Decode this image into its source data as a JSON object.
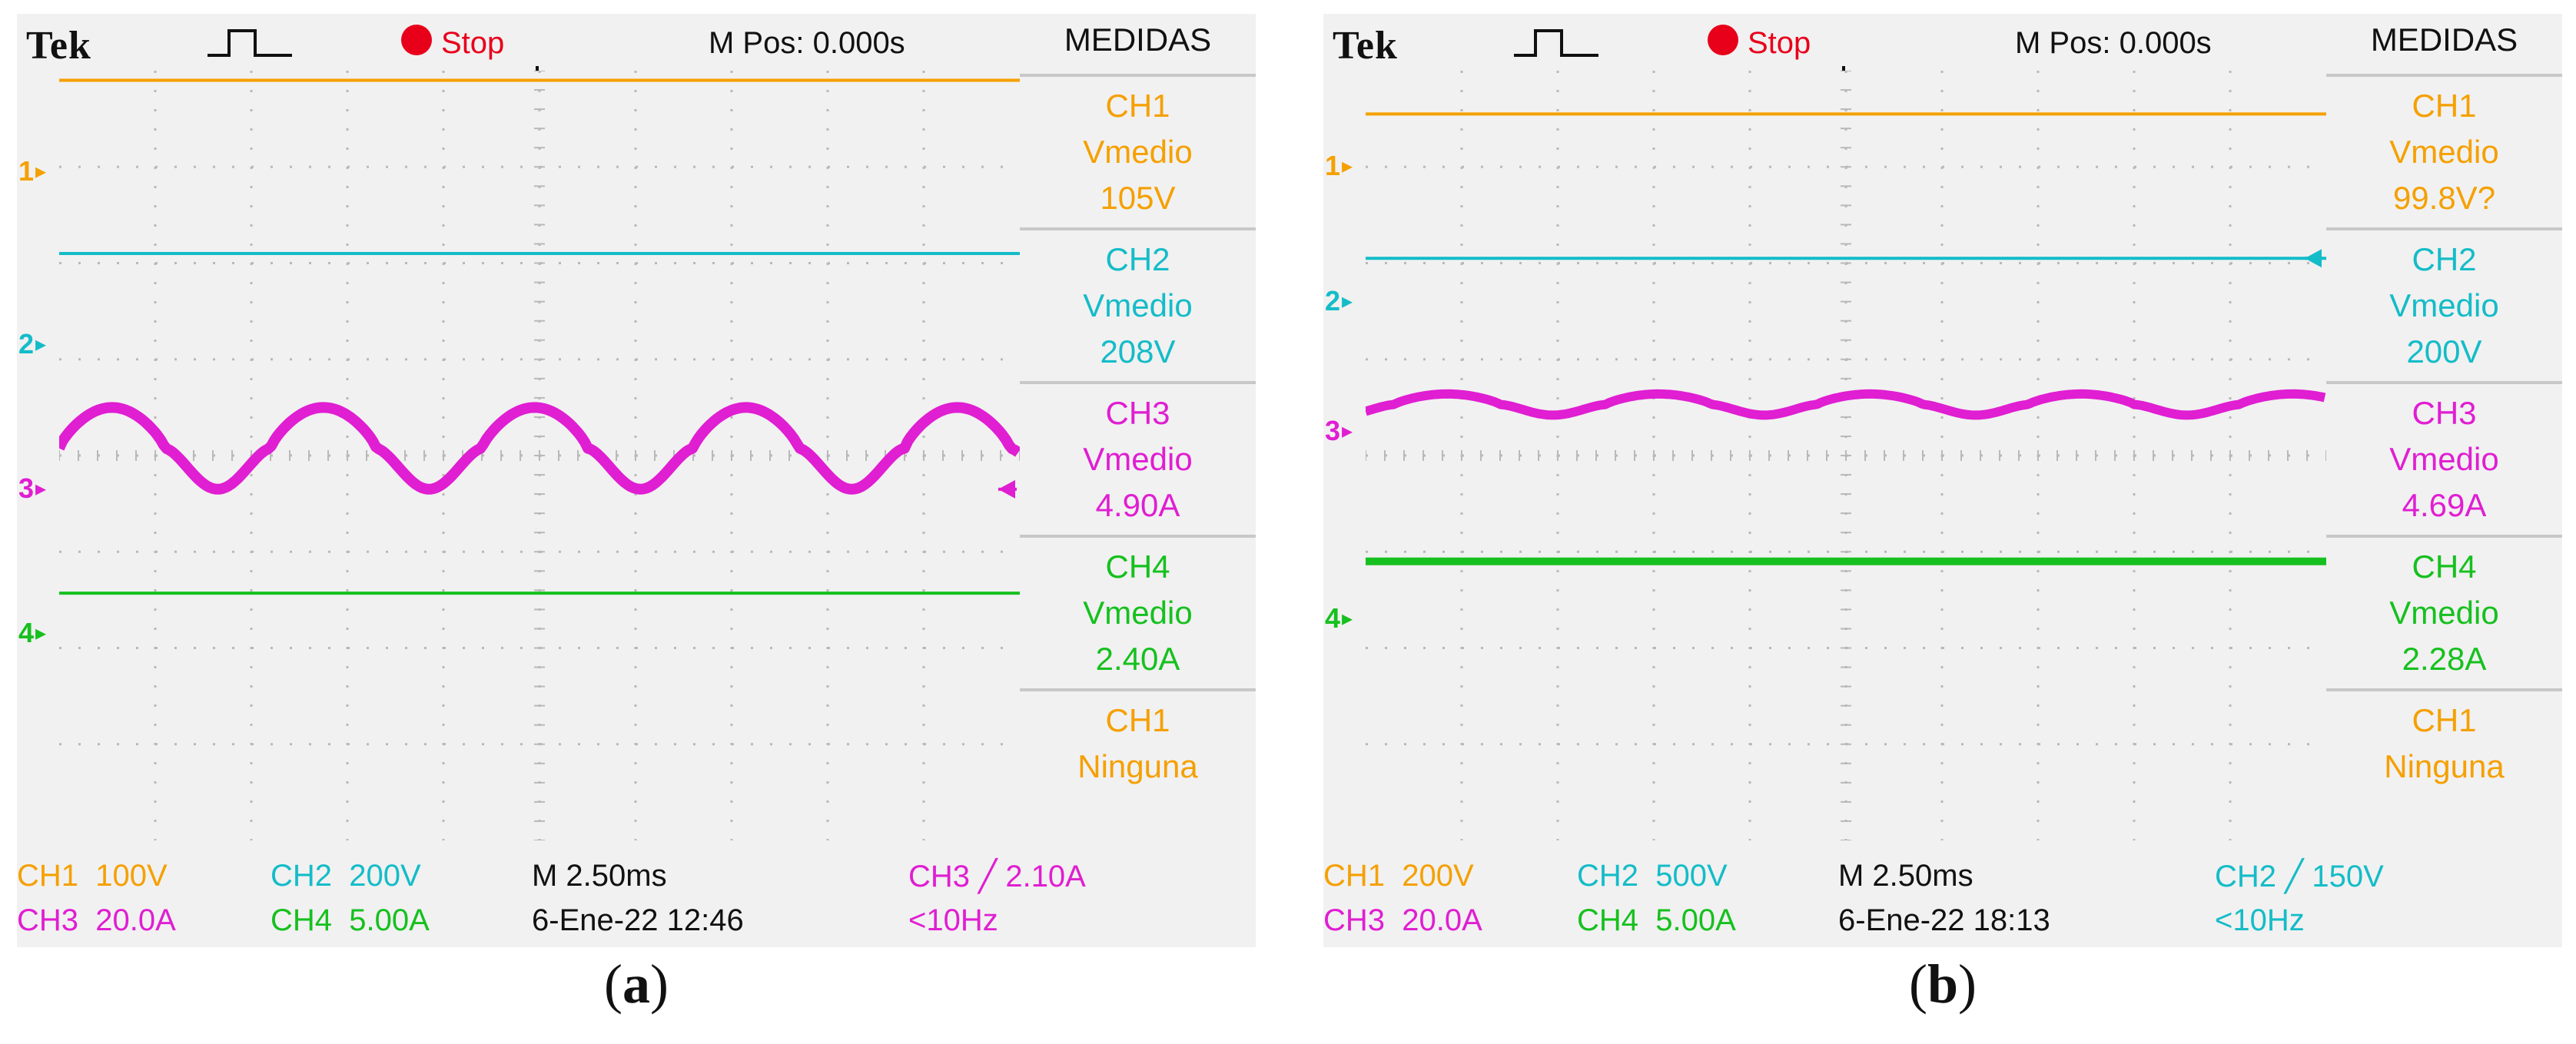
{
  "colors": {
    "ch1": "#f5a000",
    "ch2": "#14bcc8",
    "ch3": "#e01ed2",
    "ch4": "#16c01e",
    "grid": "#b9b9b9",
    "bg": "#f1f1f1"
  },
  "chart_data": [
    {
      "type": "line",
      "panel": "a",
      "header": {
        "brand": "Tek",
        "status": "Stop",
        "mpos": "M Pos: 0.000s"
      },
      "side_title": "MEDIDAS",
      "measurements": [
        {
          "channel": "CH1",
          "label": "Vmedio",
          "value": "105V",
          "color": "ch1"
        },
        {
          "channel": "CH2",
          "label": "Vmedio",
          "value": "208V",
          "color": "ch2"
        },
        {
          "channel": "CH3",
          "label": "Vmedio",
          "value": "4.90A",
          "color": "ch3"
        },
        {
          "channel": "CH4",
          "label": "Vmedio",
          "value": "2.40A",
          "color": "ch4"
        },
        {
          "channel": "CH1",
          "label": "Ninguna",
          "value": "",
          "color": "ch1"
        }
      ],
      "channel_markers": [
        {
          "label": "1",
          "div": 1.05,
          "color": "ch1"
        },
        {
          "label": "2",
          "div": 2.85,
          "color": "ch2"
        },
        {
          "label": "3",
          "div": 4.35,
          "color": "ch3"
        },
        {
          "label": "4",
          "div": 5.85,
          "color": "ch4"
        }
      ],
      "grid": {
        "x_divs": 10,
        "y_divs": 8
      },
      "series": [
        {
          "name": "CH1",
          "color": "ch1",
          "kind": "flat",
          "level": 0.1,
          "thickness": 4
        },
        {
          "name": "CH2",
          "color": "ch2",
          "kind": "flat",
          "level": 1.9,
          "thickness": 4
        },
        {
          "name": "CH3",
          "color": "ch3",
          "kind": "wave",
          "base": 4.35,
          "amplitude": 0.85,
          "period_div": 2.2,
          "phase_div": 0.55,
          "thickness": 14
        },
        {
          "name": "CH4",
          "color": "ch4",
          "kind": "flat",
          "level": 5.43,
          "thickness": 4
        }
      ],
      "trig_arrow": {
        "channel": "3",
        "div": 4.35,
        "color": "ch3"
      },
      "footer": {
        "row1": [
          {
            "text": "CH1  100V",
            "color": "ch1"
          },
          {
            "text": "CH2  200V",
            "color": "ch2"
          },
          {
            "text": "M 2.50ms",
            "color": "ink"
          },
          {
            "text": "CH3 ╱ 2.10A",
            "color": "ch3"
          }
        ],
        "row2": [
          {
            "text": "CH3  20.0A",
            "color": "ch3"
          },
          {
            "text": "CH4  5.00A",
            "color": "ch4"
          },
          {
            "text": "6-Ene-22 12:46",
            "color": "ink"
          },
          {
            "text": "<10Hz",
            "color": "ch3"
          }
        ]
      },
      "caption": "a"
    },
    {
      "type": "line",
      "panel": "b",
      "header": {
        "brand": "Tek",
        "status": "Stop",
        "mpos": "M Pos: 0.000s"
      },
      "side_title": "MEDIDAS",
      "measurements": [
        {
          "channel": "CH1",
          "label": "Vmedio",
          "value": "99.8V?",
          "color": "ch1"
        },
        {
          "channel": "CH2",
          "label": "Vmedio",
          "value": "200V",
          "color": "ch2"
        },
        {
          "channel": "CH3",
          "label": "Vmedio",
          "value": "4.69A",
          "color": "ch3"
        },
        {
          "channel": "CH4",
          "label": "Vmedio",
          "value": "2.28A",
          "color": "ch4"
        },
        {
          "channel": "CH1",
          "label": "Ninguna",
          "value": "",
          "color": "ch1"
        }
      ],
      "channel_markers": [
        {
          "label": "1",
          "div": 1.0,
          "color": "ch1"
        },
        {
          "label": "2",
          "div": 2.4,
          "color": "ch2"
        },
        {
          "label": "3",
          "div": 3.75,
          "color": "ch3"
        },
        {
          "label": "4",
          "div": 5.7,
          "color": "ch4"
        }
      ],
      "grid": {
        "x_divs": 10,
        "y_divs": 8
      },
      "series": [
        {
          "name": "CH1",
          "color": "ch1",
          "kind": "flat",
          "level": 0.45,
          "thickness": 4
        },
        {
          "name": "CH2",
          "color": "ch2",
          "kind": "flat",
          "level": 1.95,
          "thickness": 4
        },
        {
          "name": "CH3",
          "color": "ch3",
          "kind": "wave",
          "base": 3.58,
          "amplitude": 0.22,
          "period_div": 2.2,
          "phase_div": 0.85,
          "thickness": 12
        },
        {
          "name": "CH4",
          "color": "ch4",
          "kind": "flat",
          "level": 5.1,
          "thickness": 10
        }
      ],
      "trig_arrow": {
        "channel": "2",
        "div": 1.95,
        "color": "ch2"
      },
      "footer": {
        "row1": [
          {
            "text": "CH1  200V",
            "color": "ch1"
          },
          {
            "text": "CH2  500V",
            "color": "ch2"
          },
          {
            "text": "M 2.50ms",
            "color": "ink"
          },
          {
            "text": "CH2 ╱ 150V",
            "color": "ch2"
          }
        ],
        "row2": [
          {
            "text": "CH3  20.0A",
            "color": "ch3"
          },
          {
            "text": "CH4  5.00A",
            "color": "ch4"
          },
          {
            "text": "6-Ene-22 18:13",
            "color": "ink"
          },
          {
            "text": "<10Hz",
            "color": "ch2"
          }
        ]
      },
      "caption": "b"
    }
  ]
}
